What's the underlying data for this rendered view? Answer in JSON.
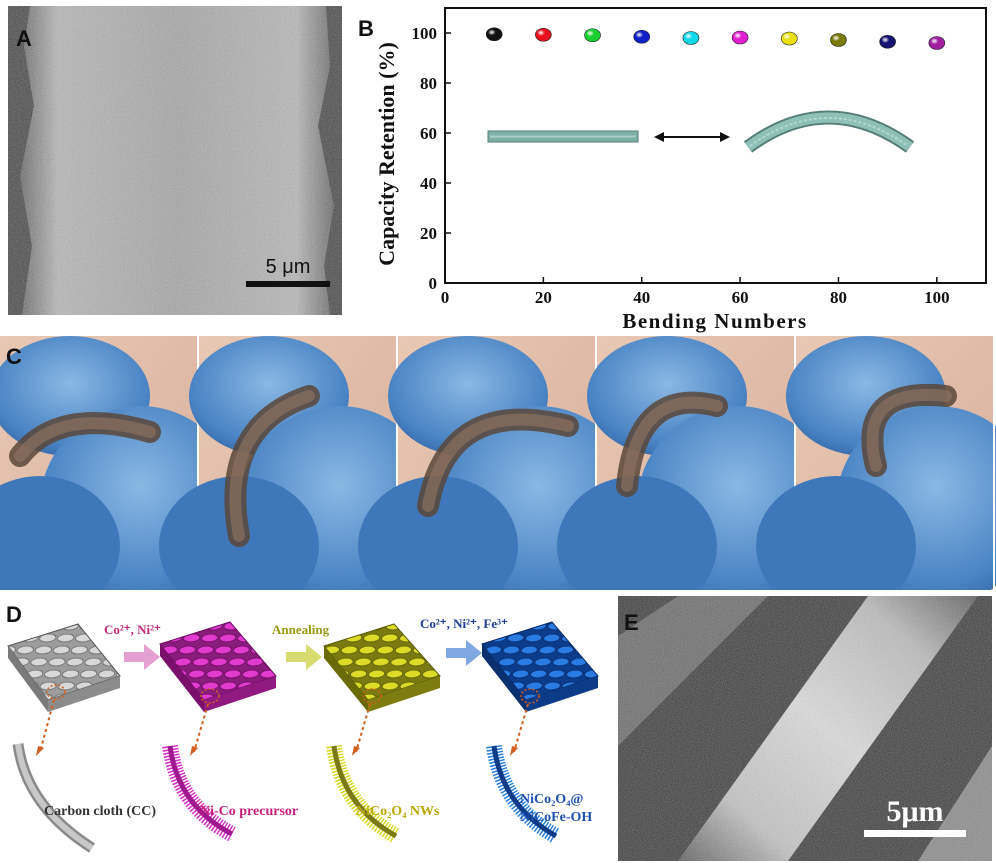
{
  "panels": {
    "a": {
      "label": "A",
      "scale_bar": "5 μm"
    },
    "b": {
      "label": "B"
    },
    "c": {
      "label": "C"
    },
    "d": {
      "label": "D",
      "steps": [
        {
          "text": "Co²⁺, Ni²⁺",
          "color": "#c0287c"
        },
        {
          "text": "Annealing",
          "color": "#9a9a12"
        },
        {
          "text": "Co²⁺, Ni²⁺, Fe³⁺",
          "color": "#1e3c9a"
        }
      ],
      "captions": [
        {
          "text": "Carbon cloth (CC)",
          "color": "#333333"
        },
        {
          "text": "Ni-Co precursor",
          "color": "#c8207c"
        },
        {
          "text": "NiCo₂O₄ NWs",
          "color": "#b8a800"
        },
        {
          "line1": "NiCo₂O₄@",
          "line2": "NiCoFe-OH",
          "color": "#1e50b0"
        }
      ]
    },
    "e": {
      "label": "E",
      "scale_bar": "5μm"
    }
  },
  "chart_data": {
    "type": "scatter",
    "title": "",
    "xlabel": "Bending Numbers",
    "ylabel": "Capacity Retention (%)",
    "xlim": [
      0,
      110
    ],
    "ylim": [
      0,
      110
    ],
    "xticks": [
      "0",
      "20",
      "40",
      "60",
      "80",
      "100"
    ],
    "yticks": [
      "0",
      "20",
      "40",
      "60",
      "80",
      "100"
    ],
    "grid": false,
    "x": [
      10,
      20,
      30,
      40,
      50,
      60,
      70,
      80,
      90,
      100
    ],
    "y": [
      99.5,
      99.3,
      99.1,
      98.5,
      98.0,
      98.2,
      97.8,
      97.2,
      96.5,
      96.0
    ],
    "point_colors": [
      "#111111",
      "#e8101c",
      "#19d030",
      "#1020c8",
      "#10d8e8",
      "#e020d0",
      "#e8e010",
      "#7a7a08",
      "#141470",
      "#a020a0"
    ]
  }
}
